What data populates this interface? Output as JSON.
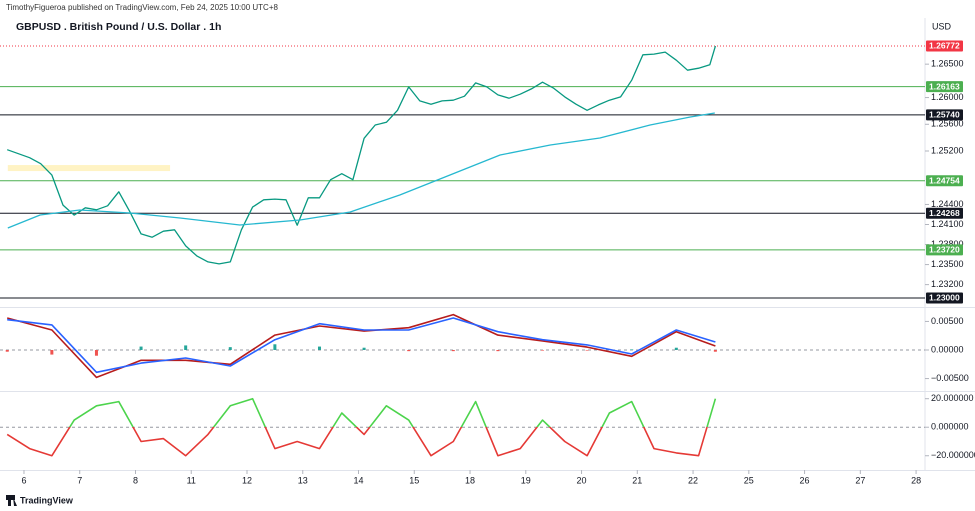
{
  "header": {
    "publisher": "TimothyFigueroa published on TradingView.com, Feb 24, 2025 10:00 UTC+8",
    "title": "GBPUSD . British Pound / U.S. Dollar . 1h",
    "currency": "USD",
    "footer": "TradingView"
  },
  "chart_data": [
    {
      "type": "line",
      "xlim": [
        -0.43,
        16.16
      ],
      "xticks": [
        {
          "value": 0,
          "label": "6"
        },
        {
          "value": 1,
          "label": "7"
        },
        {
          "value": 2,
          "label": "8"
        },
        {
          "value": 3,
          "label": "11"
        },
        {
          "value": 4,
          "label": "12"
        },
        {
          "value": 5,
          "label": "13"
        },
        {
          "value": 6,
          "label": "14"
        },
        {
          "value": 7,
          "label": "15"
        },
        {
          "value": 8,
          "label": "18"
        },
        {
          "value": 9,
          "label": "19"
        },
        {
          "value": 10,
          "label": "20"
        },
        {
          "value": 11,
          "label": "21"
        },
        {
          "value": 12,
          "label": "22"
        },
        {
          "value": 13,
          "label": "25"
        },
        {
          "value": 14,
          "label": "26"
        },
        {
          "value": 15,
          "label": "27"
        },
        {
          "value": 16,
          "label": "28"
        }
      ],
      "ylim": [
        1.22895,
        1.27191
      ],
      "yticks": [
        {
          "value": 1.265,
          "label": "1.26500"
        },
        {
          "value": 1.26,
          "label": "1.26000"
        },
        {
          "value": 1.256,
          "label": "1.25600"
        },
        {
          "value": 1.252,
          "label": "1.25200"
        },
        {
          "value": 1.244,
          "label": "1.24400"
        },
        {
          "value": 1.241,
          "label": "1.24100"
        },
        {
          "value": 1.238,
          "label": "1.23800"
        },
        {
          "value": 1.235,
          "label": "1.23500"
        },
        {
          "value": 1.232,
          "label": "1.23200"
        }
      ],
      "series": [
        {
          "color": "#089981",
          "x": [
            -0.3,
            -0.1,
            0.1,
            0.3,
            0.5,
            0.7,
            0.9,
            1.1,
            1.3,
            1.5,
            1.7,
            1.9,
            2.1,
            2.3,
            2.5,
            2.7,
            2.9,
            3.1,
            3.3,
            3.5,
            3.7,
            3.9,
            4.1,
            4.3,
            4.5,
            4.7,
            4.9,
            5.1,
            5.3,
            5.5,
            5.7,
            5.9,
            6.1,
            6.3,
            6.5,
            6.7,
            6.9,
            7.1,
            7.3,
            7.5,
            7.7,
            7.9,
            8.1,
            8.3,
            8.5,
            8.7,
            8.9,
            9.1,
            9.3,
            9.5,
            9.7,
            9.9,
            10.1,
            10.3,
            10.5,
            10.7,
            10.9,
            11.1,
            11.3,
            11.5,
            11.7,
            11.9,
            12.1,
            12.3,
            12.4
          ],
          "values": [
            1.2522,
            1.2516,
            1.251,
            1.2501,
            1.2484,
            1.2439,
            1.2424,
            1.2435,
            1.2432,
            1.2438,
            1.2459,
            1.2429,
            1.2396,
            1.2391,
            1.24,
            1.2402,
            1.2378,
            1.2363,
            1.2354,
            1.2351,
            1.2354,
            1.2402,
            1.2436,
            1.2447,
            1.2448,
            1.2447,
            1.2409,
            1.245,
            1.245,
            1.2477,
            1.2486,
            1.2477,
            1.2539,
            1.2559,
            1.2563,
            1.2581,
            1.2616,
            1.2595,
            1.259,
            1.2595,
            1.2596,
            1.2602,
            1.2622,
            1.2616,
            1.2604,
            1.2599,
            1.2605,
            1.2613,
            1.2623,
            1.2614,
            1.2601,
            1.259,
            1.2581,
            1.2589,
            1.2596,
            1.2601,
            1.2626,
            1.2664,
            1.2665,
            1.2668,
            1.2656,
            1.2641,
            1.2644,
            1.2649,
            1.2677
          ]
        },
        {
          "color": "#26b8d0",
          "x": [
            -0.29,
            0.29,
            1.0,
            1.9,
            2.8,
            3.87,
            4.95,
            5.85,
            6.74,
            7.64,
            8.54,
            9.44,
            10.33,
            11.23,
            11.95,
            12.39
          ],
          "values": [
            1.24048,
            1.24242,
            1.24317,
            1.24272,
            1.24197,
            1.24092,
            1.24167,
            1.24287,
            1.24542,
            1.24841,
            1.2514,
            1.2529,
            1.25395,
            1.25589,
            1.25709,
            1.25769
          ]
        }
      ],
      "levels": [
        {
          "value": 1.26772,
          "color": "#f23645",
          "dashed": true
        },
        {
          "value": 1.26163,
          "color": "#4caf50"
        },
        {
          "value": 1.2574,
          "label": "1.25740",
          "color": "#131722"
        },
        {
          "value": 1.24754,
          "color": "#4caf50"
        },
        {
          "value": 1.24268,
          "color": "#131722"
        },
        {
          "value": 1.2372,
          "label": "1.23720",
          "color": "#4caf50"
        },
        {
          "value": 1.23,
          "label": "1.23000",
          "color": "#131722"
        }
      ],
      "zones": [
        {
          "x": [
            -0.29,
            2.62
          ],
          "y": [
            1.249,
            1.2499
          ],
          "color": "#fff3c4"
        }
      ]
    },
    {
      "type": "line",
      "xlim": [
        -0.43,
        16.16
      ],
      "ylim": [
        -0.007,
        0.007
      ],
      "yticks": [
        {
          "value": 0.005,
          "label": "0.00500"
        },
        {
          "value": 0,
          "label": "0.00000"
        },
        {
          "value": -0.005,
          "label": "−0.00500"
        }
      ],
      "histogram": {
        "x": [
          -0.3,
          0.5,
          1.3,
          2.1,
          2.9,
          3.7,
          4.5,
          5.3,
          6.1,
          6.9,
          7.7,
          8.5,
          9.3,
          10.1,
          10.9,
          11.7,
          12.4
        ],
        "values": [
          -0.0003,
          -0.0008,
          -0.001,
          0.0006,
          0.0008,
          0.0005,
          0.001,
          0.0006,
          0.0004,
          -0.0002,
          -0.0002,
          -0.0002,
          -0.0001,
          -0.0001,
          0.0001,
          0.0004,
          -0.0003
        ],
        "color_up": "#26a69a",
        "color_down": "#ef5350"
      },
      "series": [
        {
          "color": "#b71c1c",
          "x": [
            -0.3,
            0.5,
            1.3,
            2.1,
            2.9,
            3.7,
            4.5,
            5.3,
            6.1,
            6.9,
            7.7,
            8.5,
            9.3,
            10.1,
            10.9,
            11.7,
            12.4
          ],
          "values": [
            0.0056,
            0.0035,
            -0.0048,
            -0.0018,
            -0.0018,
            -0.0025,
            0.0026,
            0.0042,
            0.0033,
            0.0039,
            0.0062,
            0.0026,
            0.0016,
            0.0005,
            -0.0011,
            0.0032,
            0.0007
          ]
        },
        {
          "color": "#2962ff",
          "x": [
            -0.3,
            0.5,
            1.3,
            2.1,
            2.9,
            3.7,
            4.5,
            5.3,
            6.1,
            6.9,
            7.7,
            8.5,
            9.3,
            10.1,
            10.9,
            11.7,
            12.4
          ],
          "values": [
            0.0053,
            0.0044,
            -0.0039,
            -0.0023,
            -0.0014,
            -0.0028,
            0.0018,
            0.0046,
            0.0035,
            0.0035,
            0.0056,
            0.0032,
            0.0018,
            0.0009,
            -0.0007,
            0.0035,
            0.0014
          ]
        }
      ]
    },
    {
      "type": "line",
      "xlim": [
        -0.43,
        16.16
      ],
      "ylim": [
        -30,
        24
      ],
      "yticks": [
        {
          "value": 20,
          "label": "20.000000"
        },
        {
          "value": 0,
          "label": "0.000000"
        },
        {
          "value": -20,
          "label": "−20.000000"
        }
      ],
      "series": [
        {
          "color_above": "#4cd44c",
          "color_below": "#e53935",
          "x": [
            -0.3,
            0.1,
            0.5,
            0.9,
            1.3,
            1.7,
            2.1,
            2.5,
            2.9,
            3.3,
            3.7,
            4.1,
            4.5,
            4.9,
            5.3,
            5.7,
            6.1,
            6.5,
            6.9,
            7.3,
            7.7,
            8.1,
            8.5,
            8.9,
            9.3,
            9.7,
            10.1,
            10.5,
            10.9,
            11.3,
            11.7,
            12.1,
            12.4
          ],
          "values": [
            -5,
            -15,
            -20,
            5,
            15,
            18,
            -10,
            -8,
            -20,
            -5,
            15,
            20,
            -15,
            -10,
            -15,
            10,
            -5,
            15,
            5,
            -20,
            -10,
            18,
            -20,
            -15,
            5,
            -10,
            -20,
            10,
            18,
            -15,
            -18,
            -20,
            20
          ]
        }
      ]
    }
  ]
}
